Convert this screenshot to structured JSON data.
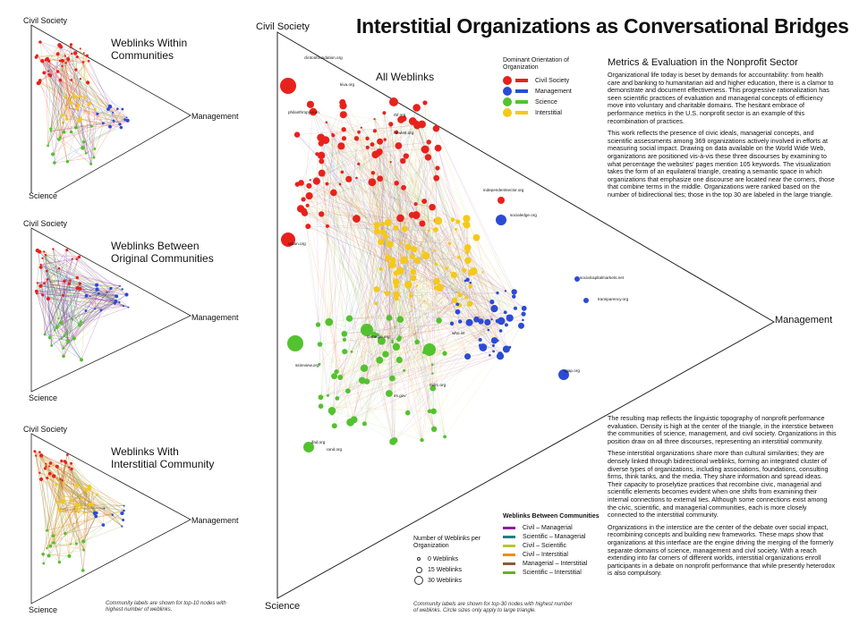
{
  "title": "Interstitial Organizations as Conversational Bridges",
  "corners": {
    "civil": "Civil Society",
    "management": "Management",
    "science": "Science"
  },
  "panels": {
    "within": "Weblinks Within Communities",
    "between": "Weblinks Between Original Communities",
    "interstitial": "Weblinks With Interstitial Community"
  },
  "main_label": "All Weblinks",
  "orientation_legend": {
    "title": "Dominant Orientation of Organization",
    "items": [
      {
        "label": "Civil Society",
        "color": "#e8211c"
      },
      {
        "label": "Management",
        "color": "#2b4bd6"
      },
      {
        "label": "Science",
        "color": "#53c22f"
      },
      {
        "label": "Interstitial",
        "color": "#f4c918"
      }
    ]
  },
  "weblinks_legend": {
    "title": "Weblinks Between Communities",
    "items": [
      {
        "label": "Civil – Managerial",
        "color": "#8b1f9a"
      },
      {
        "label": "Scientific – Managerial",
        "color": "#1c8080"
      },
      {
        "label": "Civil – Scientific",
        "color": "#b5c72a"
      },
      {
        "label": "Civil – Interstitial",
        "color": "#f08a1c"
      },
      {
        "label": "Managerial – Interstitial",
        "color": "#8a5a3a"
      },
      {
        "label": "Scientific – Interstitial",
        "color": "#6fa833"
      }
    ]
  },
  "size_legend": {
    "title": "Number of Weblinks per Organization",
    "items": [
      "0  Weblinks",
      "15  Weblinks",
      "30  Weblinks"
    ]
  },
  "notes": {
    "left": "Community labels are shown for top-10 nodes with highest number of weblinks.",
    "main": "Community labels are shown for top-30 nodes with highest number of weblinks. Circle sizes only apply to large triangle."
  },
  "article": {
    "heading": "Metrics & Evaluation in the Nonprofit Sector",
    "p1": "Organizational life today is beset by demands for accountability: from health care and banking to humanitarian aid and higher education, there is a clamor to demonstrate and document effectiveness. This progressive rationalization has seen scientific practices of evaluation and managerial concepts of efficiency move into voluntary and charitable domains. The hesitant embrace of performance metrics in the U.S. nonprofit sector is an example of this recombination of practices.",
    "p2": "This work reflects the presence of civic ideals, managerial concepts, and scientific assessments among 369 organizations actively involved in efforts at measuring social impact. Drawing on data available on the World Wide Web, organizations are positioned vis-à-vis these three discourses by examining to what percentage the websites' pages mention 105 keywords. The visualization takes the form of an equilateral triangle, creating a semantic space in which organizations that emphasize one discourse are located near the corners, those that combine terms in the middle. Organizations were ranked based on the number of bidirectional ties; those in the top 30 are labeled in the large triangle.",
    "p3": "The resulting map reflects the linguistic topography of nonprofit performance evaluation. Density is high at the center of the triangle, in the interstice between the communities of science, management, and civil society. Organizations in this position draw on all three discourses, representing an interstitial community.",
    "p4": "These interstitial organizations share more than cultural similarities; they are densely linked through bidirectional weblinks, forming an integrated cluster of diverse types of organizations, including associations, foundations, consulting firms, think tanks, and the media. They share information and spread ideas. Their capacity to proselytize practices that recombine civic, managerial and scientific elements becomes evident when one shifts from examining their internal connections to external ties. Although some connections exist among the civic, scientific, and managerial communities, each is more closely connected to the interstitial community.",
    "p5": "Organizations in the interstice are the center of the debate over social impact, recombining concepts and building new frameworks. These maps show that organizations at this interface are the engine driving the merging of the formerly separate domains of science, management and civil society. With a reach extending into far corners of different worlds, interstitial organizations enroll participants in a debate on nonprofit performance that while presently heterodox is also compulsory."
  },
  "node_labels": [
    "clintonfoundation.org",
    "kiva.org",
    "philanthropy.com",
    "urban.org",
    "ssireview.org",
    "rbf.org",
    "hewlett.org",
    "independentsector.org",
    "socialedge.org",
    "socialcapitalmarkets.net",
    "transparency.org",
    "cgap.org",
    "ifad.org",
    "rand.org",
    "carnegie.org",
    "irs.gov",
    "mdrc.org",
    "who.int"
  ]
}
